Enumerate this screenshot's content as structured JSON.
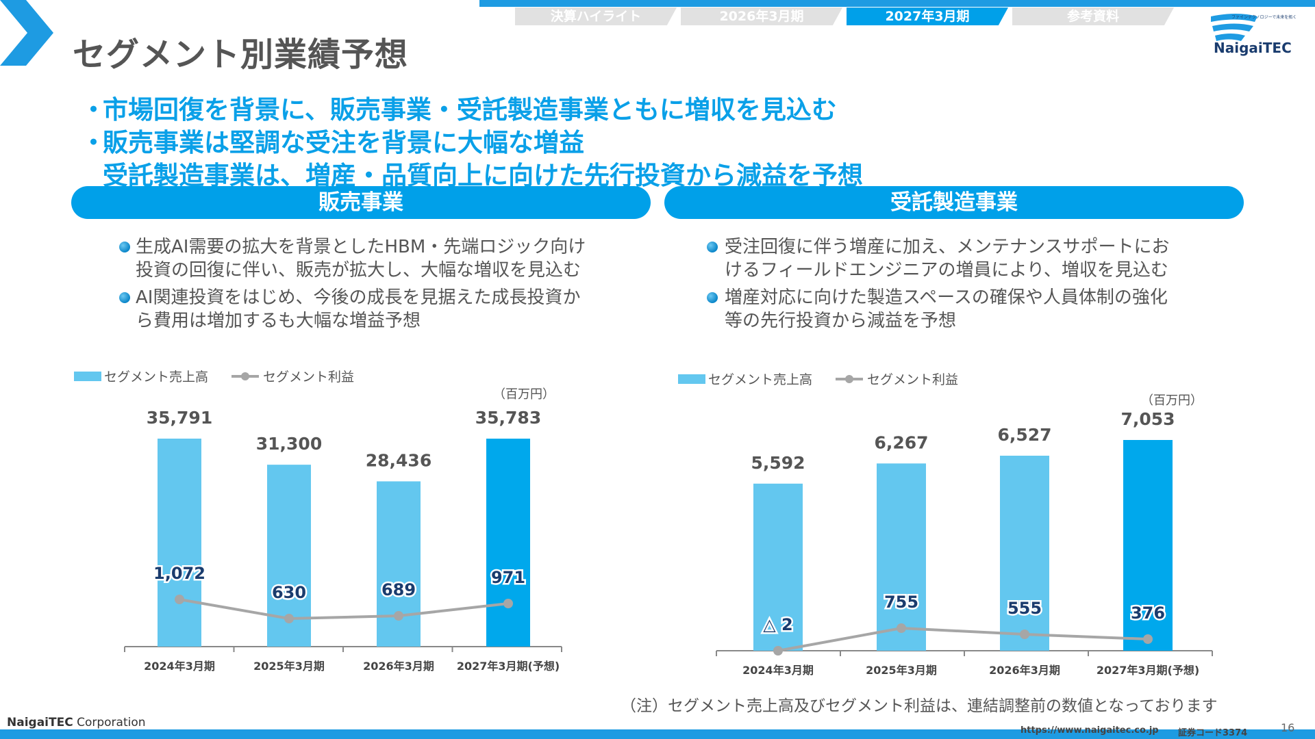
{
  "nav": {
    "tabs": [
      {
        "label": "決算ハイライト",
        "active": false
      },
      {
        "label": "2026年3月期",
        "active": false
      },
      {
        "label": "2027年3月期",
        "active": true
      },
      {
        "label": "参考資料",
        "active": false
      }
    ]
  },
  "logo": {
    "name": "NaigaiTEC",
    "tagline": "ファインテクノロジーで未来を拓く"
  },
  "page_title": "セグメント別業績予想",
  "headlines": [
    "市場回復を背景に、販売事業・受託製造事業ともに増収を見込む",
    "販売事業は堅調な受注を背景に大幅な増益",
    "受託製造事業は、増産・品質向上に向けた先行投資から減益を予想"
  ],
  "headline_bullet": "・",
  "segments": {
    "sales": {
      "title": "販売事業",
      "bullets": [
        [
          "生成AI需要の拡大を背景としたHBM・先端ロジック向け",
          "投資の回復に伴い、販売が拡大し、大幅な増収を見込む"
        ],
        [
          "AI関連投資をはじめ、今後の成長を見据えた成長投資か",
          "ら費用は増加するも大幅な増益予想"
        ]
      ]
    },
    "contract": {
      "title": "受託製造事業",
      "bullets": [
        [
          "受注回復に伴う増産に加え、メンテナンスサポートにお",
          "けるフィールドエンジニアの増員により、増収を見込む"
        ],
        [
          "増産対応に向けた製造スペースの確保や人員体制の強化",
          "等の先行投資から減益を予想"
        ]
      ]
    }
  },
  "legend": {
    "sales": "セグメント売上高",
    "profit": "セグメント利益"
  },
  "unit": "（百万円）",
  "colors": {
    "accent": "#00a0e9",
    "bar": "#63c7ef",
    "bar_forecast": "#00a8ec",
    "line": "#a6a6a6",
    "headline": "#0aa0e8"
  },
  "chart_data": [
    {
      "type": "bar",
      "segment": "販売事業",
      "categories": [
        "2024年3月期",
        "2025年3月期",
        "2026年3月期",
        "2027年3月期(予想)"
      ],
      "series": [
        {
          "name": "セグメント売上高",
          "type": "bar",
          "values": [
            35791,
            31300,
            28436,
            35783
          ],
          "labels": [
            "35,791",
            "31,300",
            "28,436",
            "35,783"
          ]
        },
        {
          "name": "セグメント利益",
          "type": "line",
          "values": [
            1072,
            630,
            689,
            971
          ],
          "labels": [
            "1,072",
            "630",
            "689",
            "971"
          ]
        }
      ],
      "ylim": [
        0,
        40000
      ],
      "unit": "（百万円）",
      "legend": "top-left"
    },
    {
      "type": "bar",
      "segment": "受託製造事業",
      "categories": [
        "2024年3月期",
        "2025年3月期",
        "2026年3月期",
        "2027年3月期(予想)"
      ],
      "series": [
        {
          "name": "セグメント売上高",
          "type": "bar",
          "values": [
            5592,
            6267,
            6527,
            7053
          ],
          "labels": [
            "5,592",
            "6,267",
            "6,527",
            "7,053"
          ]
        },
        {
          "name": "セグメント利益",
          "type": "line",
          "values": [
            -2,
            755,
            555,
            376
          ],
          "labels": [
            "△ 2",
            "755",
            "555",
            "376"
          ]
        }
      ],
      "ylim": [
        0,
        8000
      ],
      "unit": "（百万円）",
      "legend": "top-left"
    }
  ],
  "note": "（注）セグメント売上高及びセグメント利益は、連結調整前の数値となっております",
  "footer": {
    "corp_bold": "NaigaiTEC",
    "corp_rest": " Corporation",
    "url": "https://www.naigaitec.co.jp",
    "code": "証券コード3374",
    "page": "16"
  }
}
